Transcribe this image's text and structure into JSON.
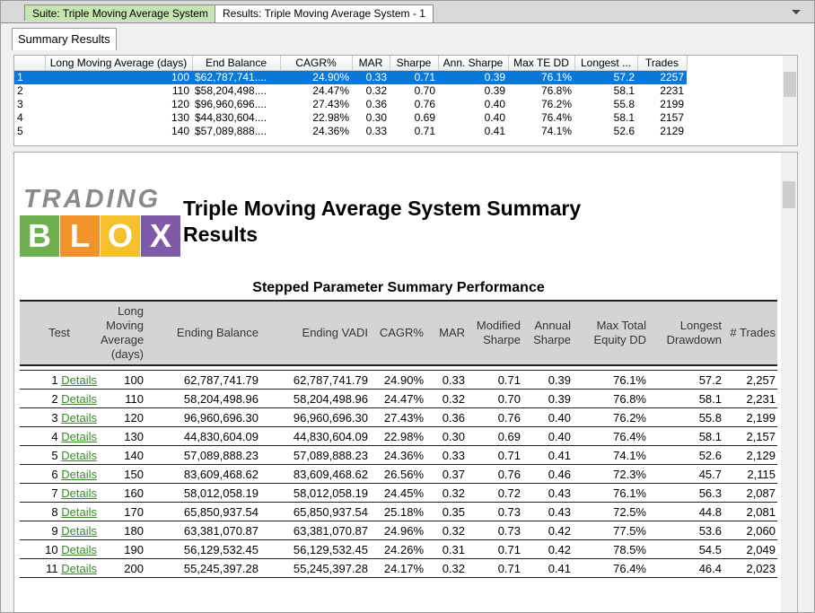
{
  "tabs": [
    "Suite: Triple Moving Average System",
    "Results: Triple Moving Average System - 1"
  ],
  "subtab": "Summary Results",
  "grid": {
    "headers": [
      "Long Moving Average (days)",
      "End Balance",
      "CAGR%",
      "MAR",
      "Sharpe",
      "Ann. Sharpe",
      "Max TE DD",
      "Longest ...",
      "Trades"
    ],
    "rows": [
      [
        "1",
        "100",
        "$62,787,741....",
        "24.90%",
        "0.33",
        "0.71",
        "0.39",
        "76.1%",
        "57.2",
        "2257"
      ],
      [
        "2",
        "110",
        "$58,204,498....",
        "24.47%",
        "0.32",
        "0.70",
        "0.39",
        "76.8%",
        "58.1",
        "2231"
      ],
      [
        "3",
        "120",
        "$96,960,696....",
        "27.43%",
        "0.36",
        "0.76",
        "0.40",
        "76.2%",
        "55.8",
        "2199"
      ],
      [
        "4",
        "130",
        "$44,830,604....",
        "22.98%",
        "0.30",
        "0.69",
        "0.40",
        "76.4%",
        "58.1",
        "2157"
      ],
      [
        "5",
        "140",
        "$57,089,888....",
        "24.36%",
        "0.33",
        "0.71",
        "0.41",
        "74.1%",
        "52.6",
        "2129"
      ]
    ]
  },
  "logo": {
    "top": "TRADING",
    "letters": [
      "B",
      "L",
      "O",
      "X"
    ]
  },
  "report": {
    "title": "Triple Moving Average System Summary Results",
    "table_title": "Stepped Parameter Summary Performance",
    "link": "Details",
    "headers": [
      "Test",
      "Long Moving Average (days)",
      "Ending Balance",
      "Ending VADI",
      "CAGR%",
      "MAR",
      "Modified Sharpe",
      "Annual Sharpe",
      "Max Total Equity DD",
      "Longest Drawdown",
      "# Trades"
    ],
    "rows": [
      [
        "1",
        "100",
        "62,787,741.79",
        "62,787,741.79",
        "24.90%",
        "0.33",
        "0.71",
        "0.39",
        "76.1%",
        "57.2",
        "2,257"
      ],
      [
        "2",
        "110",
        "58,204,498.96",
        "58,204,498.96",
        "24.47%",
        "0.32",
        "0.70",
        "0.39",
        "76.8%",
        "58.1",
        "2,231"
      ],
      [
        "3",
        "120",
        "96,960,696.30",
        "96,960,696.30",
        "27.43%",
        "0.36",
        "0.76",
        "0.40",
        "76.2%",
        "55.8",
        "2,199"
      ],
      [
        "4",
        "130",
        "44,830,604.09",
        "44,830,604.09",
        "22.98%",
        "0.30",
        "0.69",
        "0.40",
        "76.4%",
        "58.1",
        "2,157"
      ],
      [
        "5",
        "140",
        "57,089,888.23",
        "57,089,888.23",
        "24.36%",
        "0.33",
        "0.71",
        "0.41",
        "74.1%",
        "52.6",
        "2,129"
      ],
      [
        "6",
        "150",
        "83,609,468.62",
        "83,609,468.62",
        "26.56%",
        "0.37",
        "0.76",
        "0.46",
        "72.3%",
        "45.7",
        "2,115"
      ],
      [
        "7",
        "160",
        "58,012,058.19",
        "58,012,058.19",
        "24.45%",
        "0.32",
        "0.72",
        "0.43",
        "76.1%",
        "56.3",
        "2,087"
      ],
      [
        "8",
        "170",
        "65,850,937.54",
        "65,850,937.54",
        "25.18%",
        "0.35",
        "0.73",
        "0.43",
        "72.5%",
        "44.8",
        "2,081"
      ],
      [
        "9",
        "180",
        "63,381,070.87",
        "63,381,070.87",
        "24.96%",
        "0.32",
        "0.73",
        "0.42",
        "77.5%",
        "53.6",
        "2,060"
      ],
      [
        "10",
        "190",
        "56,129,532.45",
        "56,129,532.45",
        "24.26%",
        "0.31",
        "0.71",
        "0.42",
        "78.5%",
        "54.5",
        "2,049"
      ],
      [
        "11",
        "200",
        "55,245,397.28",
        "55,245,397.28",
        "24.17%",
        "0.32",
        "0.71",
        "0.41",
        "76.4%",
        "46.4",
        "2,023"
      ]
    ]
  }
}
